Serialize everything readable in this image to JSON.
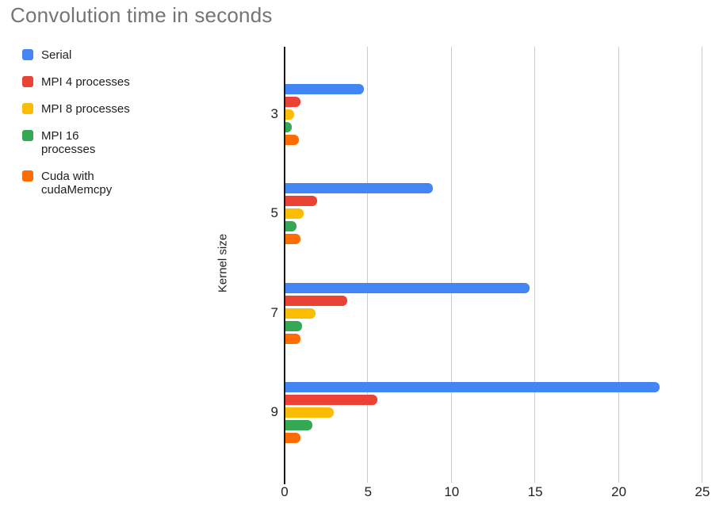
{
  "title": "Convolution time in seconds",
  "y_axis_title": "Kernel size",
  "colors": {
    "serial_blue": "#4285F4",
    "mpi4_red": "#EA4335",
    "mpi8_yellow": "#FBBC04",
    "mpi16_green": "#34A853",
    "cuda_orange": "#FF6D01",
    "title_gray": "#757575",
    "gridline_gray": "#cccccc",
    "axis_black": "#1a1a1a"
  },
  "chart_data": {
    "type": "bar",
    "orientation": "horizontal",
    "title": "Convolution time in seconds",
    "xlabel": "",
    "ylabel": "Kernel size",
    "categories": [
      "3",
      "5",
      "7",
      "9"
    ],
    "series": [
      {
        "name": "Serial",
        "color": "#4285F4",
        "values": [
          4.7,
          8.8,
          14.6,
          22.4
        ]
      },
      {
        "name": "MPI 4 processes",
        "color": "#EA4335",
        "values": [
          0.9,
          1.9,
          3.7,
          5.5
        ]
      },
      {
        "name": "MPI 8 processes",
        "color": "#FBBC04",
        "values": [
          0.5,
          1.1,
          1.8,
          2.9
        ]
      },
      {
        "name": "MPI 16 processes",
        "color": "#34A853",
        "values": [
          0.4,
          0.65,
          1.0,
          1.6
        ]
      },
      {
        "name": "Cuda with cudaMemcpy",
        "color": "#FF6D01",
        "values": [
          0.8,
          0.9,
          0.9,
          0.9
        ]
      }
    ],
    "x_ticks": [
      0,
      5,
      10,
      15,
      20,
      25
    ],
    "xlim": [
      0,
      25
    ],
    "grid": true,
    "legend_position": "top-left",
    "units": "seconds"
  }
}
